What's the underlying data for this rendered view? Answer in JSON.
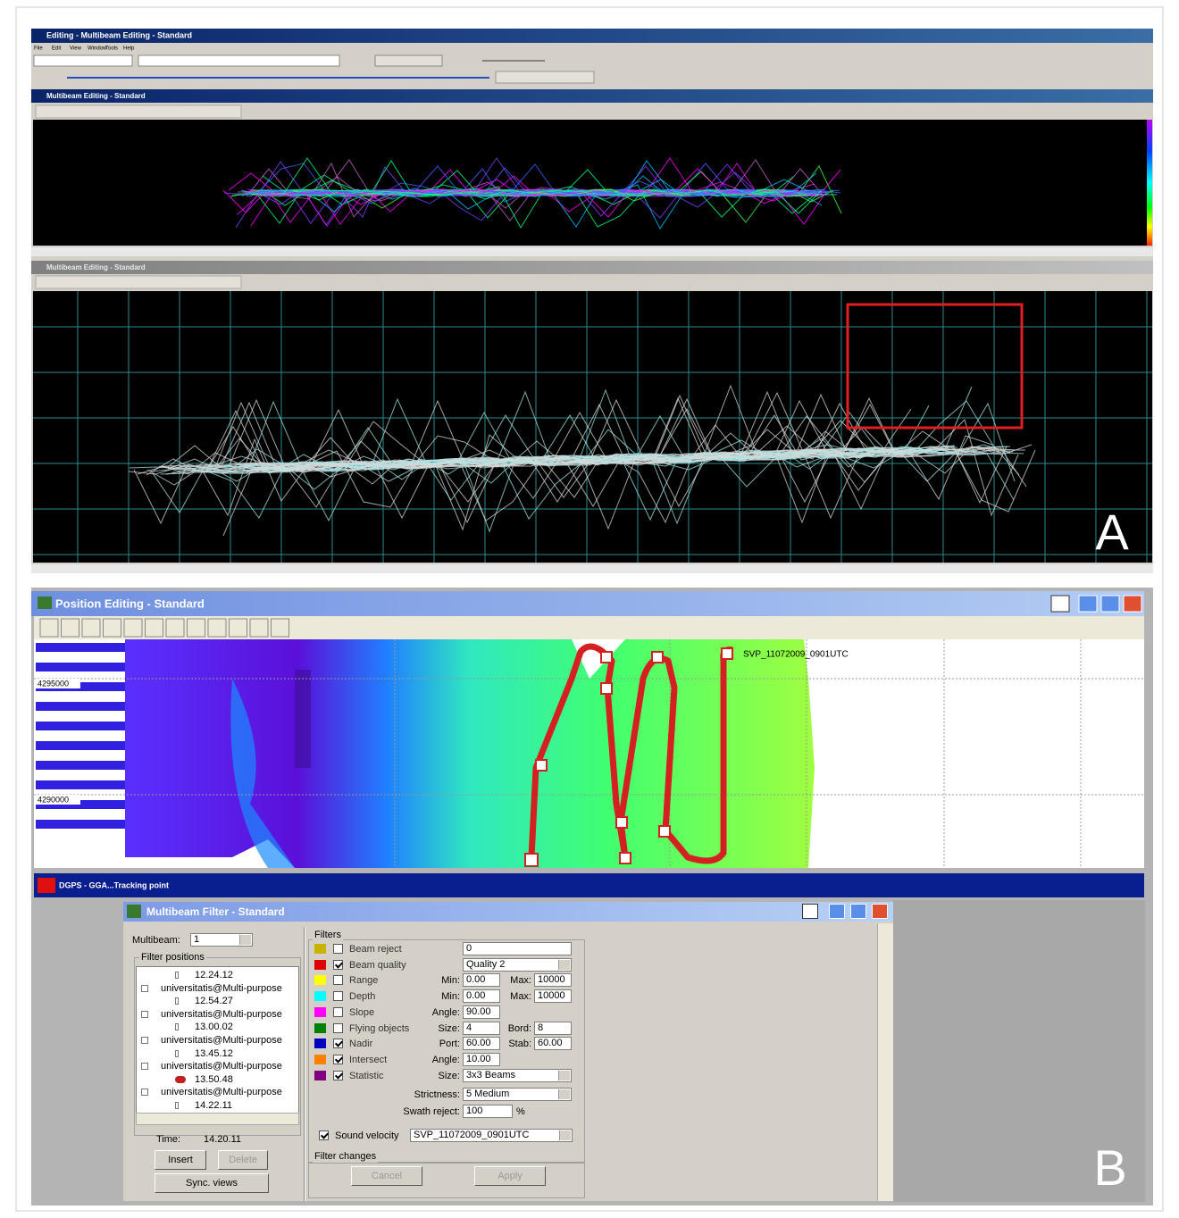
{
  "editing_window": {
    "title": "Editing - Multibeam Editing - Standard",
    "menu": [
      "File",
      "Edit",
      "View",
      "Window",
      "Tools",
      "Help"
    ]
  },
  "multibeam_view": {
    "title": "Multibeam Editing - Standard"
  },
  "sequence_view": {
    "title": "Multibeam Editing - Standard"
  },
  "panel_labels": [
    "A",
    "B"
  ],
  "position_window": {
    "title": "Position Editing - Standard",
    "svp_label": "SVP_11072009_0901UTC",
    "northings": [
      "4295000",
      "4290000"
    ],
    "legend": "DGPS - GGA...Tracking point"
  },
  "filter_window": {
    "title": "Multibeam Filter - Standard",
    "multibeam_label": "Multibeam:",
    "multibeam_value": "1",
    "filter_positions_label": "Filter positions",
    "tree": [
      {
        "text": "12.24.12",
        "kind": "time"
      },
      {
        "text": "universitatis@Multi-purpose",
        "kind": "survey"
      },
      {
        "text": "12.54.27",
        "kind": "time"
      },
      {
        "text": "universitatis@Multi-purpose",
        "kind": "survey"
      },
      {
        "text": "13.00.02",
        "kind": "time"
      },
      {
        "text": "universitatis@Multi-purpose",
        "kind": "survey"
      },
      {
        "text": "13.45.12",
        "kind": "time"
      },
      {
        "text": "universitatis@Multi-purpose",
        "kind": "survey"
      },
      {
        "text": "13.50.48",
        "kind": "time",
        "current": true
      },
      {
        "text": "universitatis@Multi-purpose",
        "kind": "survey"
      },
      {
        "text": "14.22.11",
        "kind": "time"
      }
    ],
    "time_label": "Time:",
    "time_value": "14.20.11",
    "buttons": [
      "Insert",
      "Delete",
      "Sync. views"
    ],
    "filters_label": "Filters",
    "filters": [
      {
        "name": "Beam reject",
        "color": "#c8b400",
        "checked": false,
        "fields": [
          {
            "value": "0"
          }
        ]
      },
      {
        "name": "Beam quality",
        "color": "#e00000",
        "checked": true,
        "fields": [
          {
            "value": "Quality 2",
            "dropdown": true
          }
        ]
      },
      {
        "name": "Range",
        "color": "#ffff00",
        "checked": false,
        "fields": [
          {
            "label": "Min:",
            "value": "0.00"
          },
          {
            "label": "Max:",
            "value": "10000"
          }
        ]
      },
      {
        "name": "Depth",
        "color": "#00ffff",
        "checked": false,
        "fields": [
          {
            "label": "Min:",
            "value": "0.00"
          },
          {
            "label": "Max:",
            "value": "10000"
          }
        ]
      },
      {
        "name": "Slope",
        "color": "#ff00ff",
        "checked": false,
        "fields": [
          {
            "label": "Angle:",
            "value": "90.00"
          }
        ]
      },
      {
        "name": "Flying objects",
        "color": "#008000",
        "checked": false,
        "fields": [
          {
            "label": "Size:",
            "value": "4"
          },
          {
            "label": "Bord:",
            "value": "8"
          }
        ]
      },
      {
        "name": "Nadir",
        "color": "#0000c0",
        "checked": true,
        "fields": [
          {
            "label": "Port:",
            "value": "60.00"
          },
          {
            "label": "Stab:",
            "value": "60.00"
          }
        ]
      },
      {
        "name": "Intersect",
        "color": "#ff8000",
        "checked": true,
        "fields": [
          {
            "label": "Angle:",
            "value": "10.00"
          }
        ]
      },
      {
        "name": "Statistic",
        "color": "#800080",
        "checked": true,
        "fields": [
          {
            "label": "Size:",
            "value": "3x3 Beams",
            "dropdown": true
          }
        ]
      }
    ],
    "strictness": {
      "label": "Strictness:",
      "value": "5 Medium"
    },
    "swath_reject": {
      "label": "Swath reject:",
      "value": "100",
      "unit": "%"
    },
    "sound_velocity": {
      "label": "Sound velocity",
      "checked": true,
      "value": "SVP_11072009_0901UTC"
    },
    "filter_changes_label": "Filter changes",
    "actions": [
      "Cancel",
      "Apply"
    ]
  }
}
